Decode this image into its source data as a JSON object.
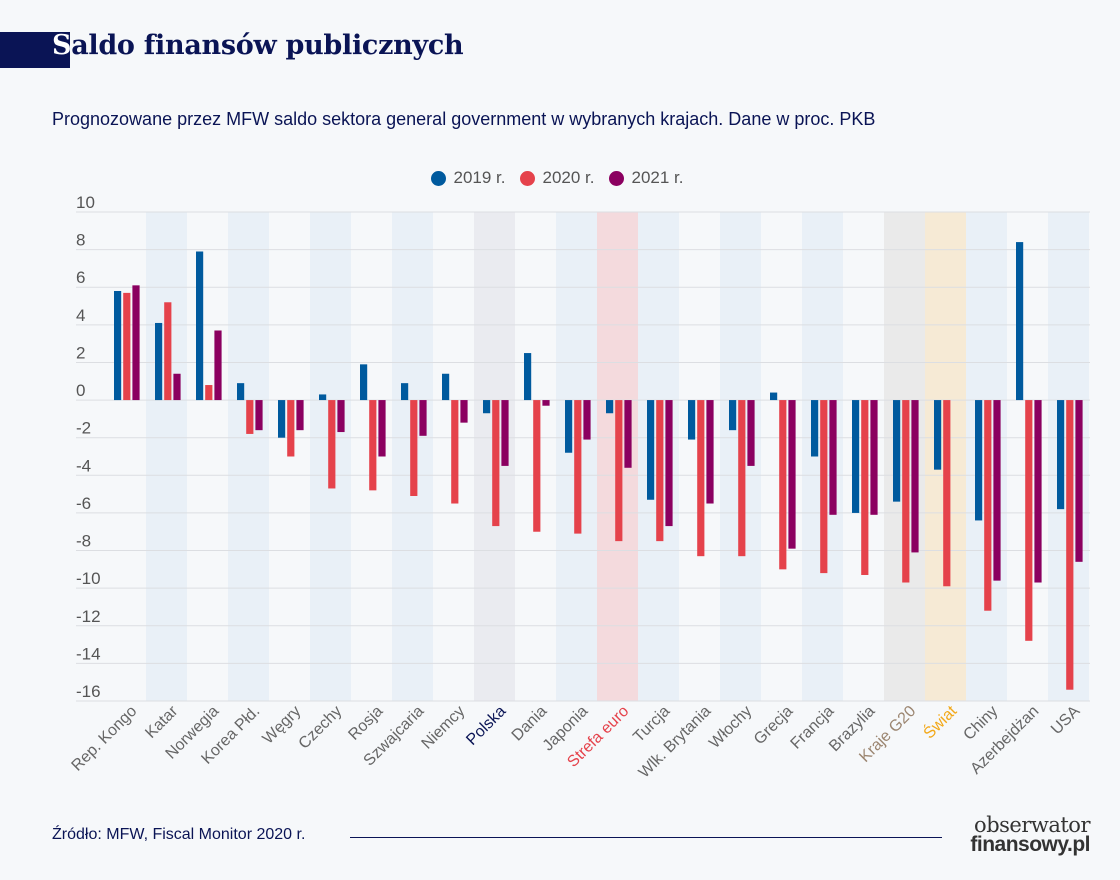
{
  "header": {
    "title_first_letter": "S",
    "title_rest": "aldo finansów publicznych",
    "subtitle": "Prognozowane przez MFW saldo sektora general government w wybranych krajach. Dane w proc. PKB"
  },
  "colors": {
    "series_2019": "#005a9e",
    "series_2020": "#e5424b",
    "series_2021": "#8b0060",
    "title_navy": "#0a1455",
    "highlight_polska": "#0a1455",
    "highlight_strefa_euro": "#e5424b",
    "highlight_g20": "#9b8570",
    "highlight_swiat": "#f2a818"
  },
  "chart_data": {
    "type": "bar",
    "title": "Saldo finansów publicznych",
    "subtitle": "Prognozowane przez MFW saldo sektora general government w wybranych krajach. Dane w proc. PKB",
    "xlabel": "",
    "ylabel": "",
    "ylim": [
      -16,
      10
    ],
    "yticks": [
      10,
      8,
      6,
      4,
      2,
      0,
      -2,
      -4,
      -6,
      -8,
      -10,
      -12,
      -14,
      -16
    ],
    "ytick_labels": [
      "10",
      "8",
      "6",
      "4",
      "2",
      "0",
      "-2",
      "-4",
      "-6",
      "-8",
      "-10",
      "-12",
      "-14",
      "-16"
    ],
    "grid": true,
    "legend_position": "top-center",
    "categories": [
      "Rep. Kongo",
      "Katar",
      "Norwegia",
      "Korea Płd.",
      "Węgry",
      "Czechy",
      "Rosja",
      "Szwajcaria",
      "Niemcy",
      "Polska",
      "Dania",
      "Japonia",
      "Strefa euro",
      "Turcja",
      "Wlk. Brytania",
      "Włochy",
      "Grecja",
      "Francja",
      "Brazylia",
      "Kraje G20",
      "Świat",
      "Chiny",
      "Azerbejdżan",
      "USA"
    ],
    "category_highlights": {
      "Polska": {
        "label_color": "#0a1455",
        "band": "#eaebf0"
      },
      "Strefa euro": {
        "label_color": "#e5424b",
        "band": "#f4dadd"
      },
      "Kraje G20": {
        "label_color": "#9b8570",
        "band": "#eaeaea"
      },
      "Świat": {
        "label_color": "#f2a818",
        "band": "#f6ead5"
      }
    },
    "series": [
      {
        "name": "2019 r.",
        "color": "#005a9e",
        "values": [
          5.8,
          4.1,
          7.9,
          0.9,
          -2.0,
          0.3,
          1.9,
          0.9,
          1.4,
          -0.7,
          2.5,
          -2.8,
          -0.7,
          -5.3,
          -2.1,
          -1.6,
          0.4,
          -3.0,
          -6.0,
          -5.4,
          -3.7,
          -6.4,
          8.4,
          -5.8
        ]
      },
      {
        "name": "2020 r.",
        "color": "#e5424b",
        "values": [
          5.7,
          5.2,
          0.8,
          -1.8,
          -3.0,
          -4.7,
          -4.8,
          -5.1,
          -5.5,
          -6.7,
          -7.0,
          -7.1,
          -7.5,
          -7.5,
          -8.3,
          -8.3,
          -9.0,
          -9.2,
          -9.3,
          -9.7,
          -9.9,
          -11.2,
          -12.8,
          -15.4
        ]
      },
      {
        "name": "2021 r.",
        "color": "#8b0060",
        "values": [
          6.1,
          1.4,
          3.7,
          -1.6,
          -1.6,
          -1.7,
          -3.0,
          -1.9,
          -1.2,
          -3.5,
          -0.3,
          -2.1,
          -3.6,
          -6.7,
          -5.5,
          -3.5,
          -7.9,
          -6.1,
          -6.1,
          -8.1,
          null,
          -9.6,
          -9.7,
          -8.6
        ]
      }
    ]
  },
  "legend": [
    {
      "label": "2019 r.",
      "color": "#005a9e"
    },
    {
      "label": "2020 r.",
      "color": "#e5424b"
    },
    {
      "label": "2021 r.",
      "color": "#8b0060"
    }
  ],
  "footer": {
    "source": "Źródło: MFW, Fiscal Monitor 2020 r.",
    "brand_top": "obserwator",
    "brand_bottom": "finansowy.pl"
  }
}
